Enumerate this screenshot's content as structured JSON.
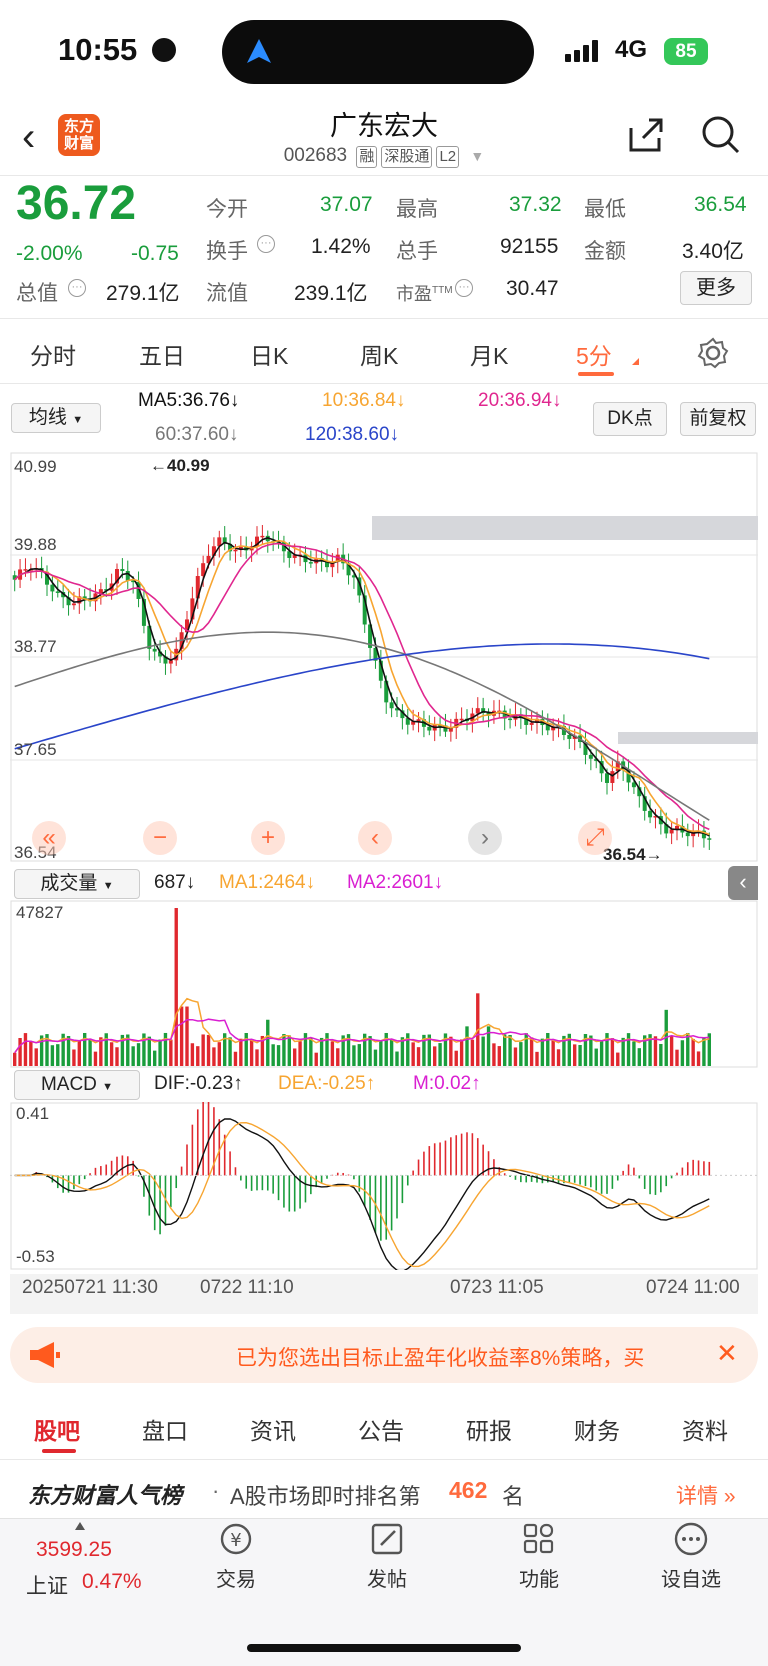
{
  "status_bar": {
    "time": "10:55",
    "network": "4G",
    "battery": "85"
  },
  "header": {
    "stock_name": "广东宏大",
    "stock_code": "002683",
    "tags": [
      "融",
      "深股通",
      "L2"
    ],
    "logo_text": "东方财富"
  },
  "quote": {
    "price": "36.72",
    "change_pct": "-2.00%",
    "change": "-0.75",
    "open_label": "今开",
    "open": "37.07",
    "high_label": "最高",
    "high": "37.32",
    "low_label": "最低",
    "low": "36.54",
    "turnover_label": "换手",
    "turnover": "1.42%",
    "volume_label": "总手",
    "volume": "92155",
    "amount_label": "金额",
    "amount": "3.40亿",
    "mcap_label": "总值",
    "mcap": "279.1亿",
    "float_label": "流值",
    "float_mcap": "239.1亿",
    "pe_label": "市盈",
    "pe_sup": "TTM",
    "pe": "30.47",
    "more_label": "更多"
  },
  "period_tabs": [
    "分时",
    "五日",
    "日K",
    "周K",
    "月K",
    "5分"
  ],
  "active_tab": "5分",
  "ma_bar": {
    "selector": "均线",
    "ma5": "MA5:36.76↓",
    "ma10": "10:36.84↓",
    "ma20": "20:36.94↓",
    "ma60": "60:37.60↓",
    "ma120": "120:38.60↓",
    "dk": "DK点",
    "fq": "前复权"
  },
  "price_axis": {
    "ticks": [
      "40.99",
      "39.88",
      "38.77",
      "37.65",
      "36.54"
    ],
    "max_label": "←40.99",
    "min_label": "36.54→"
  },
  "volume_bar": {
    "selector": "成交量",
    "value": "687↓",
    "ma1": "MA1:2464↓",
    "ma2": "MA2:2601↓",
    "max": "47827"
  },
  "macd_bar": {
    "selector": "MACD",
    "dif": "DIF:-0.23↑",
    "dea": "DEA:-0.25↑",
    "m": "M:0.02↑",
    "max": "0.41",
    "min": "-0.53"
  },
  "time_axis": [
    "20250721 11:30",
    "0722 11:10",
    "0723 11:05",
    "0724 11:00"
  ],
  "controls": [
    "«",
    "−",
    "+",
    "‹",
    "›",
    "⤢"
  ],
  "banner": {
    "text": "已为您选出目标止盈年化收益率8%策略，买"
  },
  "bottom_tabs": [
    "股吧",
    "盘口",
    "资讯",
    "公告",
    "研报",
    "财务",
    "资料"
  ],
  "active_bottom_tab": "股吧",
  "rank": {
    "brand": "东方财富人气榜",
    "text": "A股市场即时排名第",
    "rank": "462",
    "suffix": "名",
    "detail": "详情 »"
  },
  "index": {
    "value": "3599.25",
    "name": "上证",
    "pct": "0.47%"
  },
  "bottom_nav": [
    {
      "label": "交易",
      "icon": "yuan-exchange-icon"
    },
    {
      "label": "发帖",
      "icon": "edit-icon"
    },
    {
      "label": "功能",
      "icon": "grid-icon"
    },
    {
      "label": "设自选",
      "icon": "more-icon"
    }
  ],
  "chart_data": {
    "type": "candlestick",
    "close_path": [
      39.6,
      39.78,
      39.62,
      39.4,
      39.34,
      39.4,
      39.46,
      39.7,
      39.6,
      38.9,
      38.65,
      38.8,
      39.4,
      39.9,
      40.05,
      39.9,
      40.0,
      40.1,
      39.95,
      39.85,
      39.82,
      39.78,
      39.84,
      39.6,
      38.9,
      38.3,
      38.05,
      38.0,
      37.95,
      37.92,
      38.0,
      38.1,
      38.12,
      38.08,
      38.04,
      38.0,
      37.96,
      37.9,
      37.8,
      37.6,
      37.35,
      37.55,
      37.2,
      36.95,
      36.8,
      36.78,
      36.75,
      36.72
    ],
    "volume_max": 47827,
    "macd_range": [
      -0.53,
      0.41
    ]
  }
}
